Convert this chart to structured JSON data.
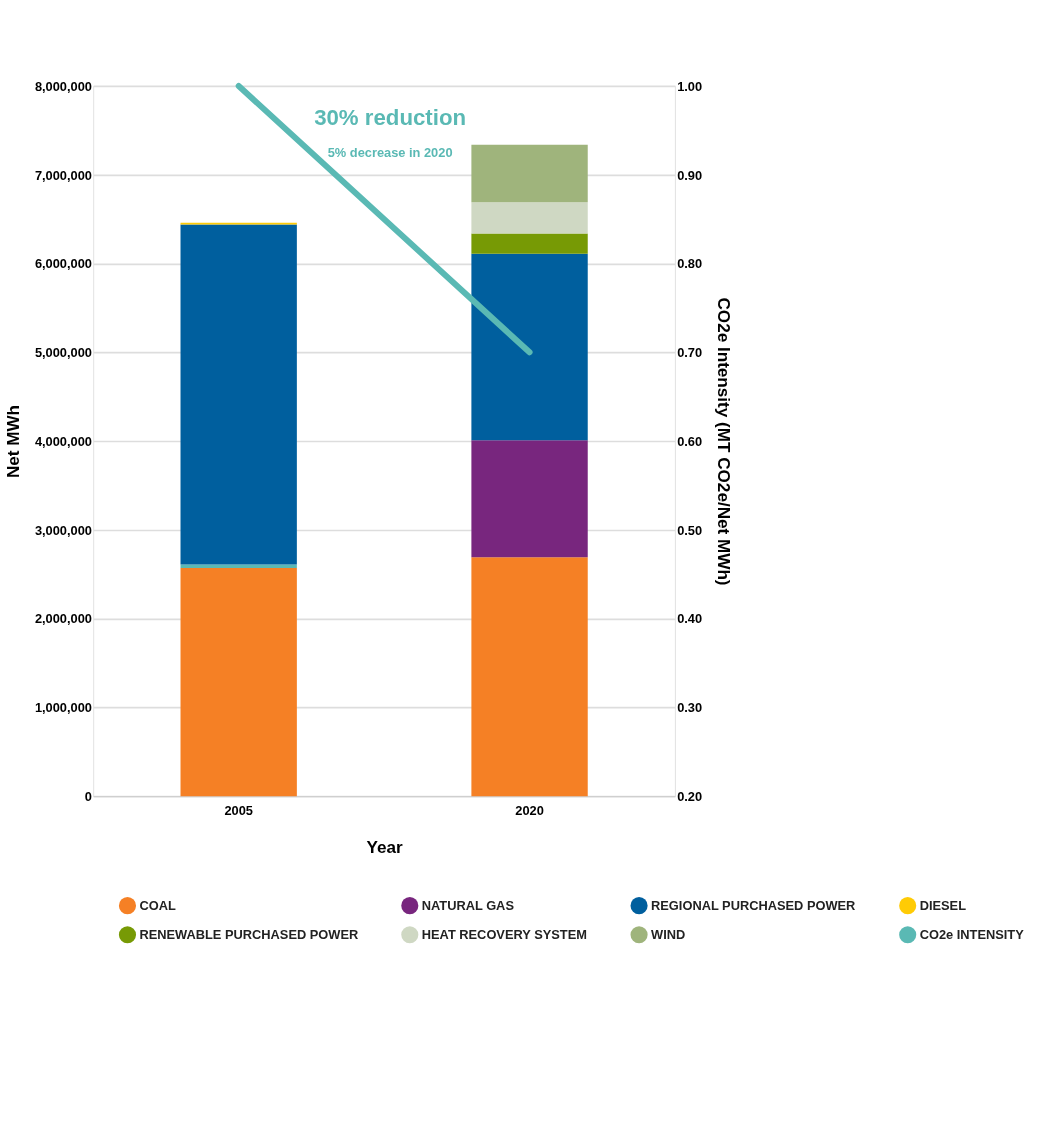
{
  "chart_data": {
    "type": "bar",
    "stacked": true,
    "xlabel": "Year",
    "ylabel": "Net MWh",
    "y2label": "CO2e Intensity (MT CO2e/Net MWh)",
    "categories": [
      "2005",
      "2020"
    ],
    "series": [
      {
        "name": "COAL",
        "color": "#f58025",
        "values": [
          2570000,
          2690000
        ]
      },
      {
        "color": "#5ab9b4",
        "values": [
          40000,
          null
        ]
      },
      {
        "name": "NATURAL GAS",
        "color": "#78267e",
        "values": [
          null,
          1320000
        ]
      },
      {
        "name": "REGIONAL PURCHASED POWER",
        "color": "#005f9e",
        "values": [
          3830000,
          2100000
        ]
      },
      {
        "name": "DIESEL",
        "color": "#ffcb05",
        "values": [
          20000,
          null
        ]
      },
      {
        "name": "RENEWABLE PURCHASED POWER",
        "color": "#779a05",
        "values": [
          null,
          230000
        ]
      },
      {
        "name": "HEAT RECOVERY SYSTEM",
        "color": "#cfd8c3",
        "values": [
          null,
          350000
        ]
      },
      {
        "name": "WIND",
        "color": "#9fb47c",
        "values": [
          null,
          650000
        ]
      },
      {
        "name": "CO2e INTENSITY",
        "type": "line",
        "axis": "y2",
        "color": "#5ab9b4",
        "values": [
          1.0,
          0.7
        ]
      }
    ],
    "ylim": [
      0,
      8000000
    ],
    "yticks": [
      0,
      {
        "value": 1000000,
        "label": "1,000,000"
      },
      {
        "value": 2000000,
        "label": "2,000,000"
      },
      {
        "value": 3000000,
        "label": "3,000,000"
      },
      {
        "value": 4000000,
        "label": "4,000,000"
      },
      {
        "value": 5000000,
        "label": "5,000,000"
      },
      {
        "value": 6000000,
        "label": "6,000,000"
      },
      {
        "value": 7000000,
        "label": "7,000,000"
      },
      {
        "value": 8000000,
        "label": "8,000,000"
      }
    ],
    "y2lim": [
      0.2,
      1.0
    ],
    "y2ticks": [
      {
        "value": 0.2,
        "label": "0.20"
      },
      {
        "value": 0.3,
        "label": "0.30"
      },
      {
        "value": 0.4,
        "label": "0.40"
      },
      {
        "value": 0.5,
        "label": "0.50"
      },
      {
        "value": 0.6,
        "label": "0.60"
      },
      {
        "value": 0.7,
        "label": "0.70"
      },
      {
        "value": 0.8,
        "label": "0.80"
      },
      {
        "value": 0.9,
        "label": "0.90"
      },
      {
        "value": 1.0,
        "label": "1.00"
      }
    ],
    "grid": "y",
    "legend": "bottom",
    "annotations": [
      "30% reduction",
      "5% decrease in 2020"
    ]
  }
}
